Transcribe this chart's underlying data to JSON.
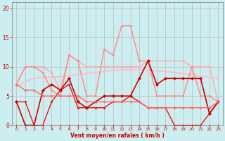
{
  "background_color": "#cceef0",
  "grid_color": "#bbbbbb",
  "xlabel": "Vent moyen/en rafales ( km/h )",
  "xlim": [
    -0.5,
    23.5
  ],
  "ylim": [
    0,
    21
  ],
  "yticks": [
    0,
    5,
    10,
    15,
    20
  ],
  "xticks": [
    0,
    1,
    2,
    3,
    4,
    5,
    6,
    7,
    8,
    9,
    10,
    11,
    12,
    13,
    14,
    15,
    16,
    17,
    18,
    19,
    20,
    21,
    22,
    23
  ],
  "series": [
    {
      "name": "smooth_trend",
      "x": [
        0,
        1,
        2,
        3,
        4,
        5,
        6,
        7,
        8,
        9,
        10,
        11,
        12,
        13,
        14,
        15,
        16,
        17,
        18,
        19,
        20,
        21,
        22,
        23
      ],
      "y": [
        6.5,
        7.5,
        8.0,
        8.2,
        8.3,
        8.3,
        8.5,
        8.7,
        8.8,
        9.0,
        9.2,
        9.4,
        9.5,
        9.5,
        9.5,
        9.4,
        9.3,
        9.2,
        9.0,
        8.8,
        8.6,
        8.4,
        8.2,
        8.0
      ],
      "color": "#ffbbcc",
      "linewidth": 1.3,
      "marker": null,
      "markersize": 0
    },
    {
      "name": "pink_flat_upper",
      "x": [
        0,
        1,
        2,
        3,
        4,
        5,
        6,
        7,
        8,
        9,
        10,
        11,
        12,
        13,
        14,
        15,
        16,
        17,
        18,
        19,
        20,
        21,
        22,
        23
      ],
      "y": [
        7,
        10,
        10,
        10,
        9,
        6,
        12,
        11,
        10,
        10,
        10,
        10,
        10,
        10,
        10,
        11,
        11,
        11,
        11,
        11,
        10,
        10,
        10,
        4
      ],
      "color": "#ffaaaa",
      "linewidth": 1.0,
      "marker": "D",
      "markersize": 2.0
    },
    {
      "name": "pink_spiky",
      "x": [
        0,
        1,
        2,
        3,
        4,
        5,
        6,
        7,
        8,
        9,
        10,
        11,
        12,
        13,
        14,
        15,
        16,
        17,
        18,
        19,
        20,
        21,
        22,
        23
      ],
      "y": [
        7,
        10,
        10,
        9,
        6,
        5,
        12,
        11,
        5,
        5,
        13,
        12,
        17,
        17,
        11,
        11,
        5,
        5,
        5,
        5,
        10,
        5,
        5,
        4
      ],
      "color": "#ff8888",
      "linewidth": 1.0,
      "marker": "D",
      "markersize": 2.0
    },
    {
      "name": "red_zero_line",
      "x": [
        0,
        1,
        2,
        3,
        4,
        5,
        6,
        7,
        8,
        9,
        10,
        11,
        12,
        13,
        14,
        15,
        16,
        17,
        18,
        19,
        20,
        21,
        22,
        23
      ],
      "y": [
        0,
        0,
        0,
        0,
        0,
        0,
        0,
        0,
        0,
        0,
        0,
        0,
        0,
        0,
        0,
        0,
        0,
        0,
        0,
        0,
        0,
        0,
        0,
        0
      ],
      "color": "#ff2222",
      "linewidth": 1.0,
      "marker": "D",
      "markersize": 1.8
    },
    {
      "name": "red_lower1",
      "x": [
        0,
        1,
        2,
        3,
        4,
        5,
        6,
        7,
        8,
        9,
        10,
        11,
        12,
        13,
        14,
        15,
        16,
        17,
        18,
        19,
        20,
        21,
        22,
        23
      ],
      "y": [
        4,
        4,
        0,
        0,
        4,
        6,
        7,
        3,
        3,
        3,
        3,
        4,
        4,
        5,
        4,
        3,
        3,
        3,
        0,
        0,
        0,
        0,
        2,
        4
      ],
      "color": "#ee1111",
      "linewidth": 1.0,
      "marker": "D",
      "markersize": 2.0
    },
    {
      "name": "red_main",
      "x": [
        0,
        1,
        2,
        3,
        4,
        5,
        6,
        7,
        8,
        9,
        10,
        11,
        12,
        13,
        14,
        15,
        16,
        17,
        18,
        19,
        20,
        21,
        22,
        23
      ],
      "y": [
        4,
        0,
        0,
        6,
        7,
        6,
        8,
        4,
        3,
        4,
        5,
        5,
        5,
        5,
        8,
        11,
        7,
        8,
        8,
        8,
        8,
        8,
        2,
        4
      ],
      "color": "#cc0000",
      "linewidth": 1.2,
      "marker": "D",
      "markersize": 2.5
    },
    {
      "name": "red_declining",
      "x": [
        0,
        1,
        2,
        3,
        4,
        5,
        6,
        7,
        8,
        9,
        10,
        11,
        12,
        13,
        14,
        15,
        16,
        17,
        18,
        19,
        20,
        21,
        22,
        23
      ],
      "y": [
        7,
        6,
        6,
        5,
        5,
        5,
        5,
        5,
        4,
        4,
        4,
        4,
        4,
        4,
        4,
        3,
        3,
        3,
        3,
        3,
        3,
        3,
        3,
        4
      ],
      "color": "#ff6666",
      "linewidth": 1.0,
      "marker": "D",
      "markersize": 2.0
    }
  ]
}
